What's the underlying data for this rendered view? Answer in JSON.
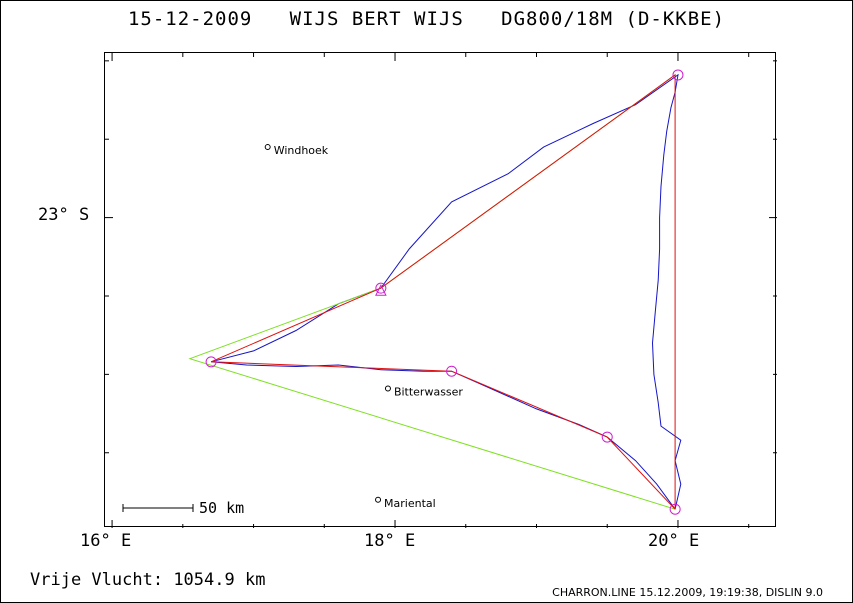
{
  "header": {
    "date": "15-12-2009",
    "pilot": "WIJS BERT WIJS",
    "glider": "DG800/18M (D-KKBE)"
  },
  "axes": {
    "x_ticks": [
      "16° E",
      "18° E",
      "20° E"
    ],
    "y_ticks": [
      "23° S"
    ]
  },
  "places": [
    {
      "name": "Windhoek",
      "lon": 17.1,
      "lat": -22.55
    },
    {
      "name": "Bitterwasser",
      "lon": 17.95,
      "lat": -24.09
    },
    {
      "name": "Mariental",
      "lon": 17.88,
      "lat": -24.8
    }
  ],
  "scale_bar": {
    "label": "50 km"
  },
  "stats": {
    "label": "Vrije Vlucht:",
    "value": "1054.9 km"
  },
  "footer": "CHARRON.LINE 15.12.2009, 19:19:38, DISLIN 9.0",
  "colors": {
    "track": "#1515c8",
    "task": "#e01010",
    "optimized": "#7de020",
    "turnpoint": "#d020d0"
  },
  "chart_data": {
    "type": "map",
    "lon_range": [
      15.95,
      20.7
    ],
    "lat_range": [
      -24.98,
      -21.95
    ],
    "turnpoints": [
      {
        "lon": 20.0,
        "lat": -22.09
      },
      {
        "lon": 17.9,
        "lat": -23.45
      },
      {
        "lon": 16.7,
        "lat": -23.92
      },
      {
        "lon": 18.4,
        "lat": -23.98
      },
      {
        "lon": 19.5,
        "lat": -24.4
      },
      {
        "lon": 19.98,
        "lat": -24.86
      }
    ],
    "task_route": [
      [
        19.98,
        -24.86
      ],
      [
        19.98,
        -22.09
      ],
      [
        17.9,
        -23.45
      ],
      [
        16.7,
        -23.92
      ],
      [
        18.4,
        -23.98
      ],
      [
        19.5,
        -24.4
      ],
      [
        19.98,
        -24.86
      ]
    ],
    "optimized_route": [
      [
        19.98,
        -24.86
      ],
      [
        16.55,
        -23.9
      ],
      [
        17.9,
        -23.45
      ],
      [
        19.98,
        -22.09
      ]
    ],
    "flight_track": [
      [
        19.98,
        -24.86
      ],
      [
        20.02,
        -24.7
      ],
      [
        19.98,
        -24.55
      ],
      [
        20.02,
        -24.42
      ],
      [
        19.88,
        -24.33
      ],
      [
        19.86,
        -24.18
      ],
      [
        19.83,
        -24.0
      ],
      [
        19.82,
        -23.8
      ],
      [
        19.84,
        -23.6
      ],
      [
        19.86,
        -23.4
      ],
      [
        19.87,
        -23.2
      ],
      [
        19.87,
        -23.0
      ],
      [
        19.88,
        -22.8
      ],
      [
        19.9,
        -22.6
      ],
      [
        19.92,
        -22.45
      ],
      [
        19.95,
        -22.3
      ],
      [
        19.98,
        -22.2
      ],
      [
        20.0,
        -22.09
      ],
      [
        19.7,
        -22.28
      ],
      [
        19.4,
        -22.4
      ],
      [
        19.05,
        -22.55
      ],
      [
        18.8,
        -22.72
      ],
      [
        18.4,
        -22.9
      ],
      [
        18.1,
        -23.2
      ],
      [
        17.9,
        -23.45
      ],
      [
        17.6,
        -23.55
      ],
      [
        17.3,
        -23.72
      ],
      [
        17.0,
        -23.85
      ],
      [
        16.7,
        -23.92
      ],
      [
        16.95,
        -23.94
      ],
      [
        17.3,
        -23.95
      ],
      [
        17.6,
        -23.94
      ],
      [
        17.9,
        -23.97
      ],
      [
        18.2,
        -23.98
      ],
      [
        18.4,
        -23.98
      ],
      [
        18.7,
        -24.1
      ],
      [
        19.0,
        -24.22
      ],
      [
        19.3,
        -24.32
      ],
      [
        19.5,
        -24.4
      ],
      [
        19.7,
        -24.55
      ],
      [
        19.85,
        -24.7
      ],
      [
        19.98,
        -24.86
      ]
    ]
  }
}
